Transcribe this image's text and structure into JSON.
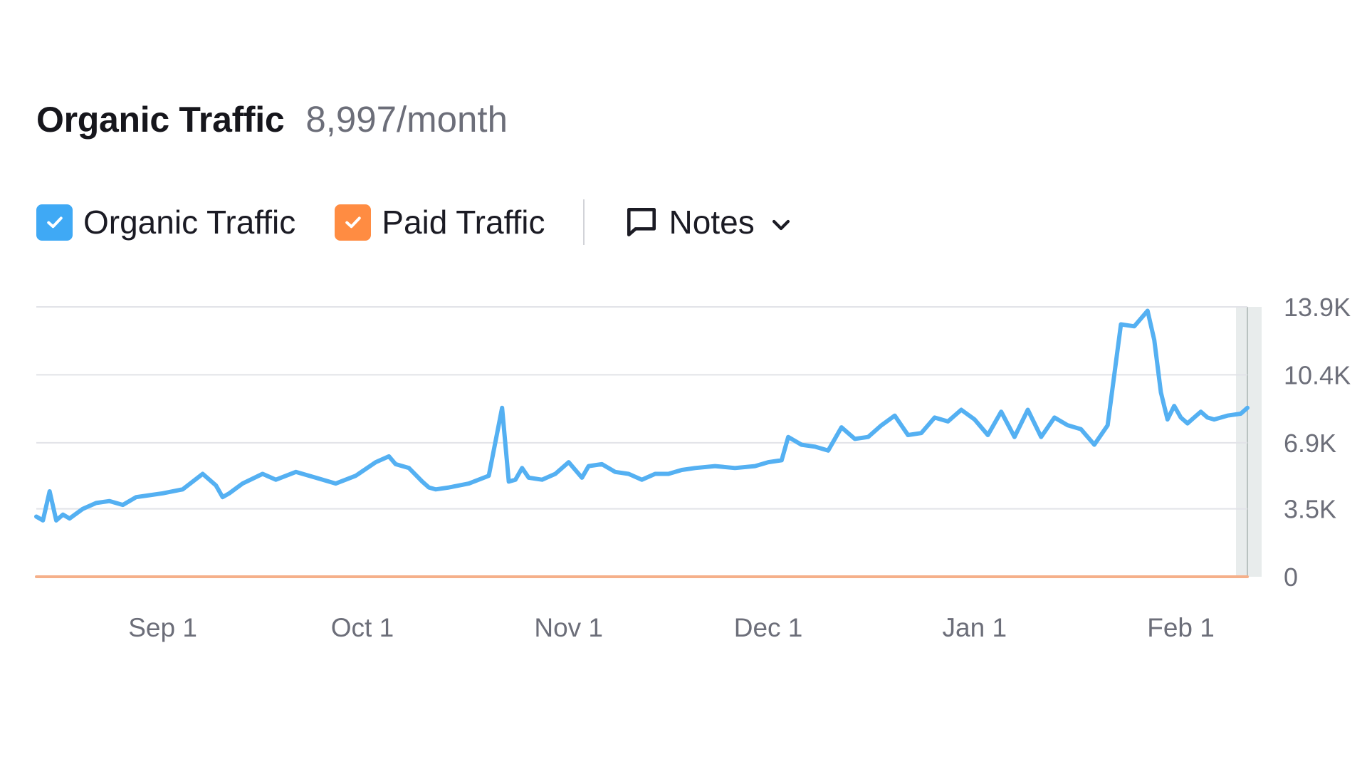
{
  "header": {
    "title": "Organic Traffic",
    "metric": "8,997/month"
  },
  "legend": {
    "organic": {
      "label": "Organic Traffic",
      "checked": true,
      "color": "#3fa9f5"
    },
    "paid": {
      "label": "Paid Traffic",
      "checked": true,
      "color": "#ff8c42"
    },
    "notes": {
      "label": "Notes",
      "icon": "comment-icon",
      "chevron": "chevron-down-icon"
    }
  },
  "colors": {
    "organic_line": "#54b0f2",
    "paid_line": "#f5b08a",
    "grid": "#e2e3e8",
    "axis_text": "#6c6e79",
    "current_band": "#e8ecec"
  },
  "chart_data": {
    "type": "line",
    "x_axis": {
      "type": "date",
      "ticks": [
        "Sep 1",
        "Oct 1",
        "Nov 1",
        "Dec 1",
        "Jan 1",
        "Feb 1"
      ],
      "range": [
        "Aug 13",
        "Feb 11"
      ]
    },
    "y_axis": {
      "position": "right",
      "ticks": [
        "0",
        "3.5K",
        "6.9K",
        "10.4K",
        "13.9K"
      ],
      "tick_values": [
        0,
        3500,
        6900,
        10400,
        13900
      ],
      "range": [
        0,
        13900
      ]
    },
    "grid": true,
    "series": [
      {
        "name": "Organic Traffic",
        "color": "#54b0f2",
        "x": [
          "Aug 13",
          "Aug 14",
          "Aug 15",
          "Aug 16",
          "Aug 17",
          "Aug 18",
          "Aug 20",
          "Aug 22",
          "Aug 24",
          "Aug 26",
          "Aug 28",
          "Aug 30",
          "Sep 1",
          "Sep 4",
          "Sep 7",
          "Sep 9",
          "Sep 10",
          "Sep 11",
          "Sep 13",
          "Sep 16",
          "Sep 18",
          "Sep 21",
          "Sep 24",
          "Sep 27",
          "Sep 30",
          "Oct 3",
          "Oct 5",
          "Oct 6",
          "Oct 8",
          "Oct 10",
          "Oct 11",
          "Oct 12",
          "Oct 14",
          "Oct 17",
          "Oct 20",
          "Oct 22",
          "Oct 23",
          "Oct 24",
          "Oct 25",
          "Oct 26",
          "Oct 28",
          "Oct 30",
          "Nov 1",
          "Nov 3",
          "Nov 4",
          "Nov 6",
          "Nov 8",
          "Nov 10",
          "Nov 12",
          "Nov 14",
          "Nov 16",
          "Nov 18",
          "Nov 20",
          "Nov 23",
          "Nov 26",
          "Nov 29",
          "Dec 1",
          "Dec 3",
          "Dec 4",
          "Dec 6",
          "Dec 8",
          "Dec 10",
          "Dec 12",
          "Dec 14",
          "Dec 16",
          "Dec 18",
          "Dec 20",
          "Dec 22",
          "Dec 24",
          "Dec 26",
          "Dec 28",
          "Dec 30",
          "Jan 1",
          "Jan 3",
          "Jan 5",
          "Jan 7",
          "Jan 9",
          "Jan 11",
          "Jan 13",
          "Jan 15",
          "Jan 17",
          "Jan 19",
          "Jan 21",
          "Jan 23",
          "Jan 25",
          "Jan 27",
          "Jan 28",
          "Jan 29",
          "Jan 30",
          "Jan 31",
          "Feb 1",
          "Feb 2",
          "Feb 3",
          "Feb 4",
          "Feb 5",
          "Feb 6",
          "Feb 8",
          "Feb 10",
          "Feb 11"
        ],
        "values": [
          3100,
          2900,
          4400,
          2900,
          3200,
          3000,
          3500,
          3800,
          3900,
          3700,
          4100,
          4200,
          4300,
          4500,
          5300,
          4700,
          4100,
          4300,
          4800,
          5300,
          5000,
          5400,
          5100,
          4800,
          5200,
          5900,
          6200,
          5800,
          5600,
          4900,
          4600,
          4500,
          4600,
          4800,
          5200,
          8700,
          4900,
          5000,
          5600,
          5100,
          5000,
          5300,
          5900,
          5100,
          5700,
          5800,
          5400,
          5300,
          5000,
          5300,
          5300,
          5500,
          5600,
          5700,
          5600,
          5700,
          5900,
          6000,
          7200,
          6800,
          6700,
          6500,
          7700,
          7100,
          7200,
          7800,
          8300,
          7300,
          7400,
          8200,
          8000,
          8600,
          8100,
          7300,
          8500,
          7200,
          8600,
          7200,
          8200,
          7800,
          7600,
          6800,
          7800,
          13000,
          12900,
          13700,
          12200,
          9500,
          8100,
          8800,
          8200,
          7900,
          8200,
          8500,
          8200,
          8100,
          8300,
          8400,
          8700
        ]
      },
      {
        "name": "Paid Traffic",
        "color": "#f5b08a",
        "x": [
          "Aug 13",
          "Feb 11"
        ],
        "values": [
          0,
          0
        ]
      }
    ],
    "legend_placement": "top-left"
  }
}
